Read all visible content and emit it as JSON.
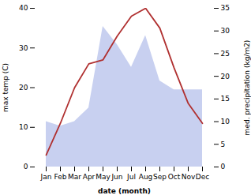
{
  "chart_data": {
    "type": "line",
    "xlabel": "date (month)",
    "ylabel": "max temp (C)",
    "y2label": "med. precipitation (kg/m2)",
    "categories": [
      "Jan",
      "Feb",
      "Mar",
      "Apr",
      "May",
      "Jun",
      "Jul",
      "Aug",
      "Sep",
      "Oct",
      "Nov",
      "Dec"
    ],
    "series": [
      {
        "type": "area",
        "axis": "y2",
        "color": "#c8d0f0",
        "values": [
          10,
          9,
          10,
          13,
          31,
          27,
          22,
          29,
          19,
          17,
          17,
          17
        ]
      },
      {
        "type": "line",
        "color": "#b03030",
        "values": [
          3,
          11,
          20,
          26,
          27,
          33,
          38,
          40,
          35,
          25,
          16,
          11
        ]
      }
    ],
    "ylim": [
      0,
      40
    ],
    "yticks": [
      0,
      10,
      20,
      30,
      40
    ],
    "y2lim": [
      0,
      35
    ],
    "y2ticks": [
      0,
      5,
      10,
      15,
      20,
      25,
      30,
      35
    ],
    "grid": false
  }
}
